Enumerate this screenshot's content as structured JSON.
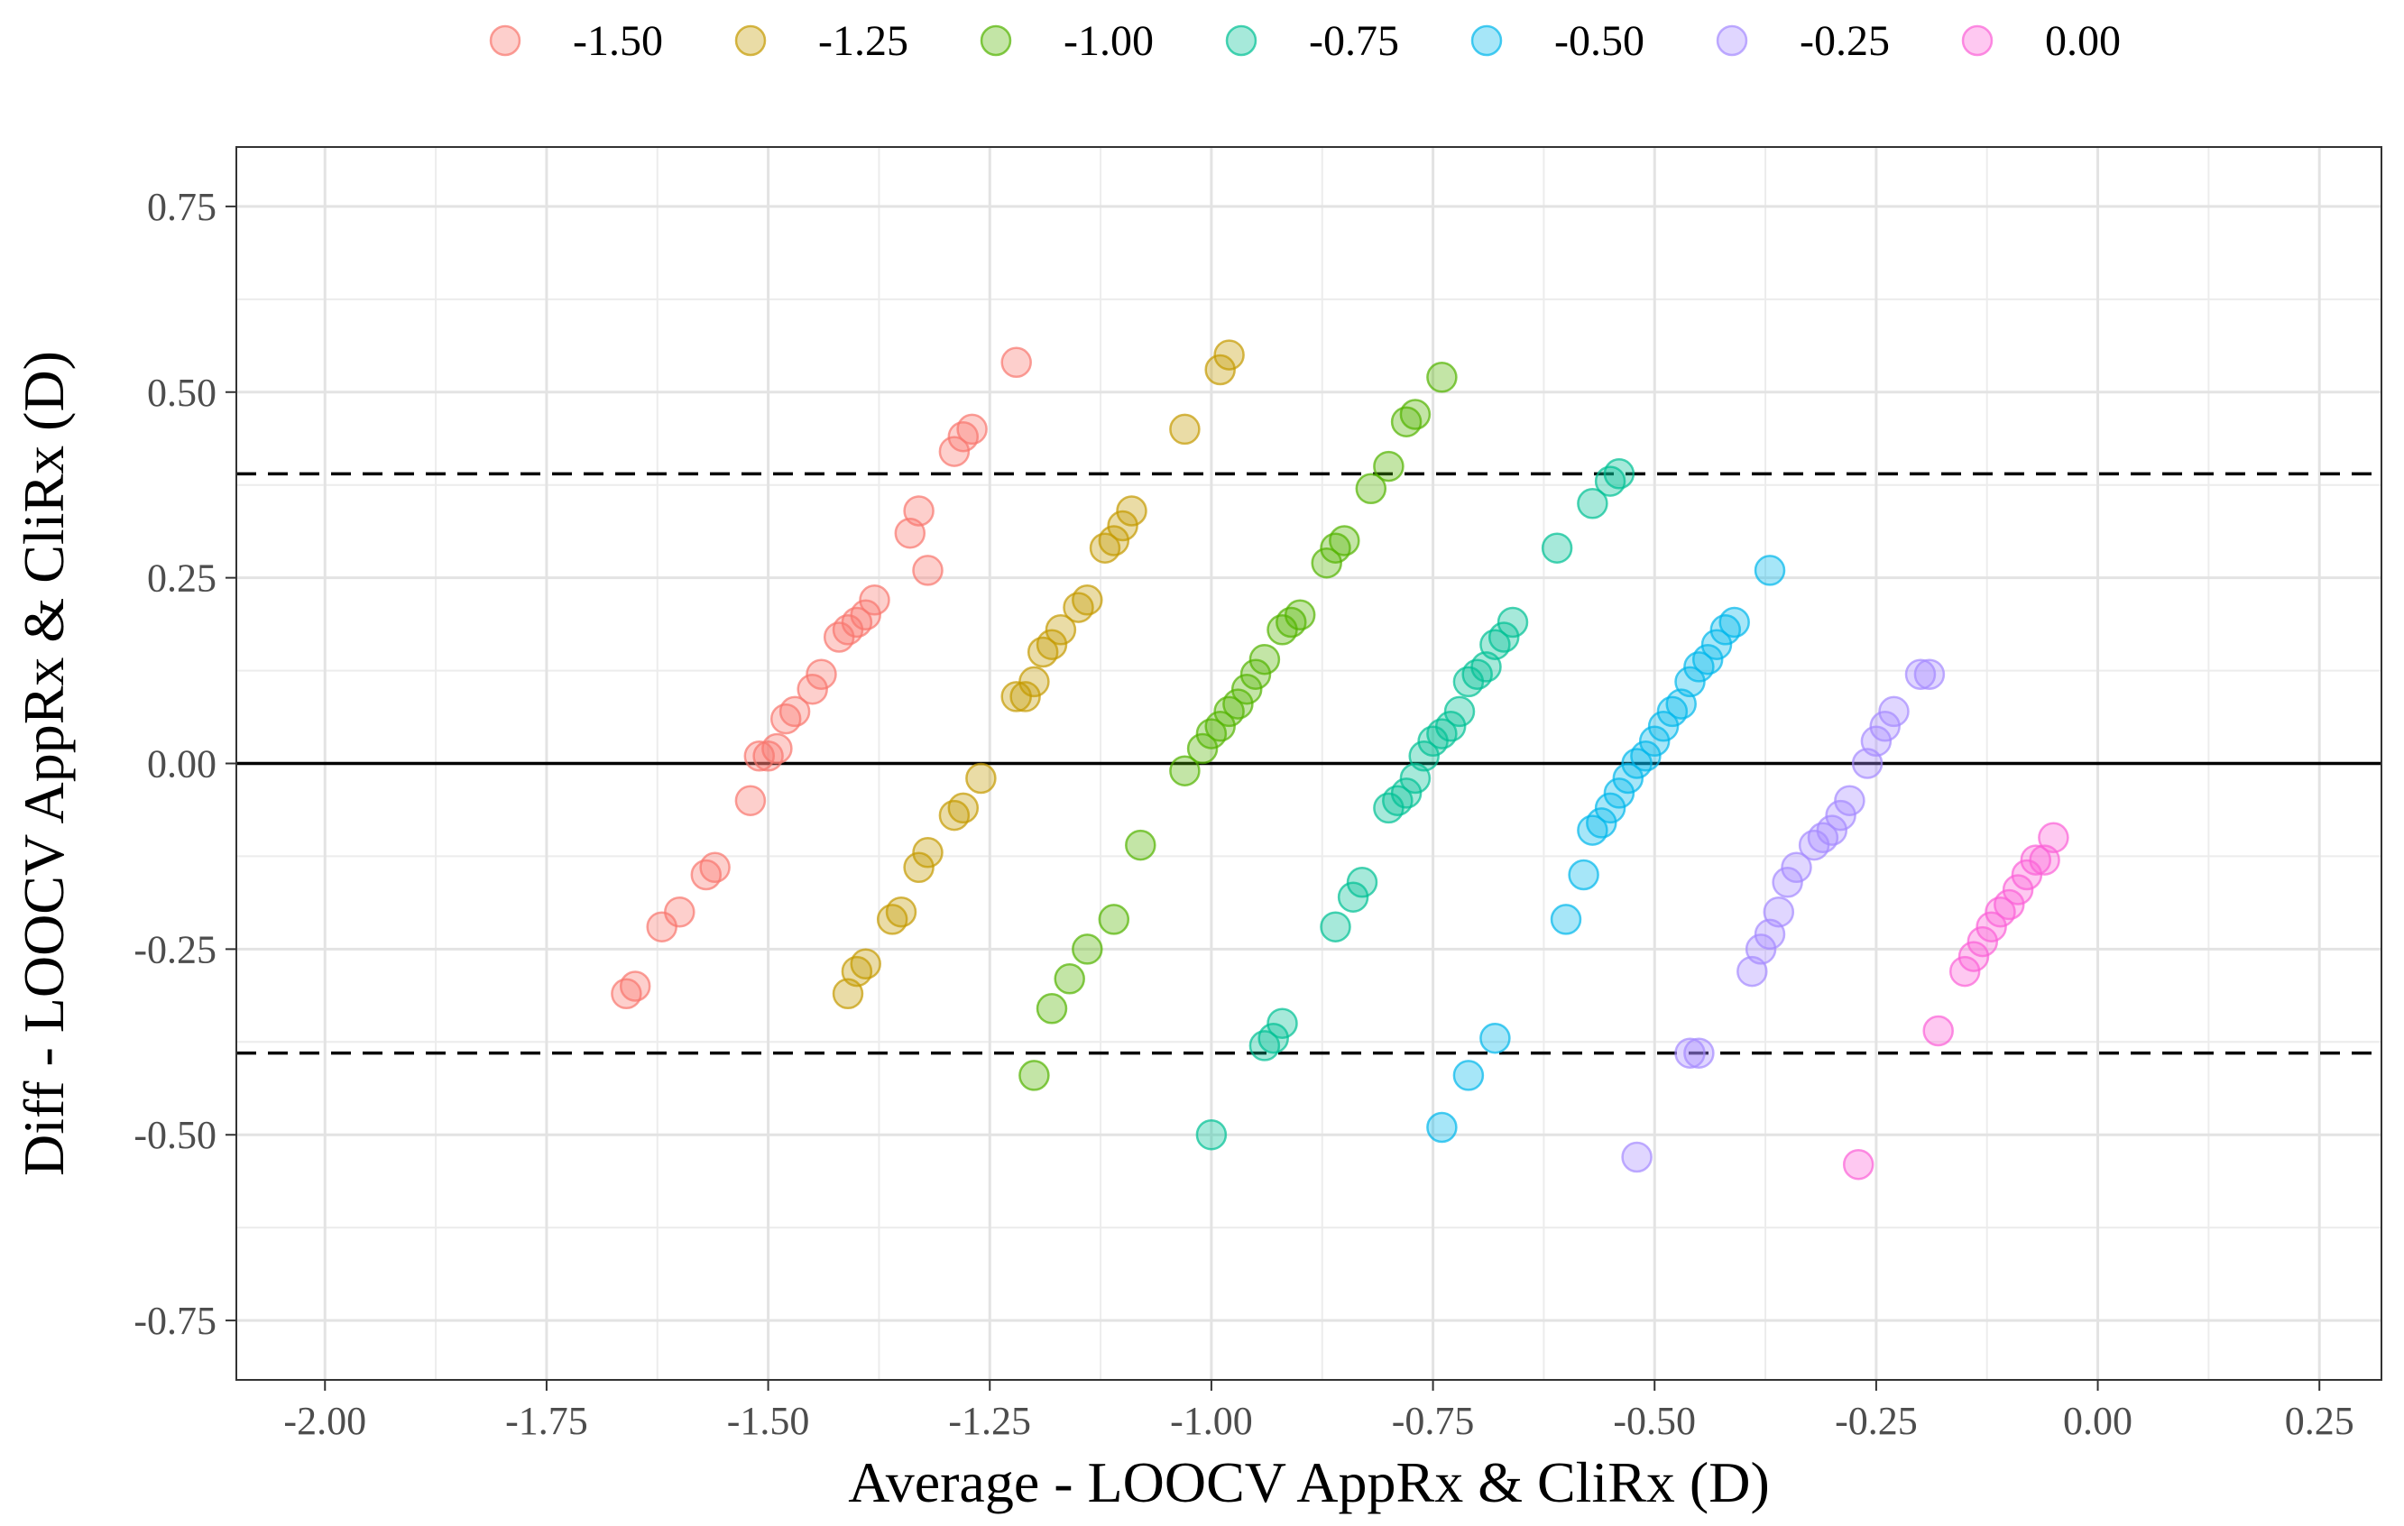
{
  "chart_data": {
    "type": "scatter",
    "xlabel": "Average - LOOCV AppRx & CliRx (D)",
    "ylabel": "Diff - LOOCV AppRx & CliRx (D)",
    "xlim": [
      -2.1,
      0.32
    ],
    "ylim": [
      -0.83,
      0.83
    ],
    "x_ticks": [
      -2.0,
      -1.75,
      -1.5,
      -1.25,
      -1.0,
      -0.75,
      -0.5,
      -0.25,
      0.0,
      0.25
    ],
    "x_tick_labels": [
      "-2.00",
      "-1.75",
      "-1.50",
      "-1.25",
      "-1.00",
      "-0.75",
      "-0.50",
      "-0.25",
      "0.00",
      "0.25"
    ],
    "y_ticks": [
      0.75,
      0.5,
      0.25,
      0.0,
      -0.25,
      -0.5,
      -0.75
    ],
    "y_tick_labels": [
      "0.75",
      "0.50",
      "0.25",
      "0.00",
      "-0.25",
      "-0.50",
      "-0.75"
    ],
    "grid": true,
    "legend_position": "top",
    "mean_line": 0.0,
    "limits_of_agreement": [
      0.39,
      -0.39
    ],
    "series": [
      {
        "name": "-1.50",
        "color": "#F8766D",
        "points": [
          [
            -1.22,
            0.54
          ],
          [
            -1.27,
            0.45
          ],
          [
            -1.28,
            0.44
          ],
          [
            -1.29,
            0.42
          ],
          [
            -1.33,
            0.34
          ],
          [
            -1.34,
            0.31
          ],
          [
            -1.32,
            0.26
          ],
          [
            -1.38,
            0.22
          ],
          [
            -1.39,
            0.2
          ],
          [
            -1.4,
            0.19
          ],
          [
            -1.41,
            0.18
          ],
          [
            -1.42,
            0.17
          ],
          [
            -1.44,
            0.12
          ],
          [
            -1.45,
            0.1
          ],
          [
            -1.47,
            0.07
          ],
          [
            -1.48,
            0.06
          ],
          [
            -1.49,
            0.02
          ],
          [
            -1.5,
            0.01
          ],
          [
            -1.51,
            0.01
          ],
          [
            -1.52,
            -0.05
          ],
          [
            -1.56,
            -0.14
          ],
          [
            -1.57,
            -0.15
          ],
          [
            -1.6,
            -0.2
          ],
          [
            -1.62,
            -0.22
          ],
          [
            -1.65,
            -0.3
          ],
          [
            -1.66,
            -0.31
          ]
        ]
      },
      {
        "name": "-1.25",
        "color": "#C49A00",
        "points": [
          [
            -0.98,
            0.55
          ],
          [
            -0.99,
            0.53
          ],
          [
            -1.03,
            0.45
          ],
          [
            -1.09,
            0.34
          ],
          [
            -1.1,
            0.32
          ],
          [
            -1.11,
            0.3
          ],
          [
            -1.12,
            0.29
          ],
          [
            -1.14,
            0.22
          ],
          [
            -1.15,
            0.21
          ],
          [
            -1.17,
            0.18
          ],
          [
            -1.18,
            0.16
          ],
          [
            -1.19,
            0.15
          ],
          [
            -1.2,
            0.11
          ],
          [
            -1.21,
            0.09
          ],
          [
            -1.22,
            0.09
          ],
          [
            -1.26,
            -0.02
          ],
          [
            -1.28,
            -0.06
          ],
          [
            -1.29,
            -0.07
          ],
          [
            -1.32,
            -0.12
          ],
          [
            -1.33,
            -0.14
          ],
          [
            -1.35,
            -0.2
          ],
          [
            -1.36,
            -0.21
          ],
          [
            -1.39,
            -0.27
          ],
          [
            -1.4,
            -0.28
          ],
          [
            -1.41,
            -0.31
          ]
        ]
      },
      {
        "name": "-1.00",
        "color": "#53B400",
        "points": [
          [
            -0.74,
            0.52
          ],
          [
            -0.77,
            0.47
          ],
          [
            -0.78,
            0.46
          ],
          [
            -0.8,
            0.4
          ],
          [
            -0.82,
            0.37
          ],
          [
            -0.85,
            0.3
          ],
          [
            -0.86,
            0.29
          ],
          [
            -0.87,
            0.27
          ],
          [
            -0.9,
            0.2
          ],
          [
            -0.91,
            0.19
          ],
          [
            -0.92,
            0.18
          ],
          [
            -0.94,
            0.14
          ],
          [
            -0.95,
            0.12
          ],
          [
            -0.96,
            0.1
          ],
          [
            -0.97,
            0.08
          ],
          [
            -0.98,
            0.07
          ],
          [
            -0.99,
            0.05
          ],
          [
            -1.0,
            0.04
          ],
          [
            -1.01,
            0.02
          ],
          [
            -1.03,
            -0.01
          ],
          [
            -1.08,
            -0.11
          ],
          [
            -1.11,
            -0.21
          ],
          [
            -1.14,
            -0.25
          ],
          [
            -1.16,
            -0.29
          ],
          [
            -1.18,
            -0.33
          ],
          [
            -1.2,
            -0.42
          ]
        ]
      },
      {
        "name": "-0.75",
        "color": "#00C094",
        "points": [
          [
            -0.54,
            0.39
          ],
          [
            -0.55,
            0.38
          ],
          [
            -0.57,
            0.35
          ],
          [
            -0.61,
            0.29
          ],
          [
            -0.66,
            0.19
          ],
          [
            -0.67,
            0.17
          ],
          [
            -0.68,
            0.16
          ],
          [
            -0.69,
            0.13
          ],
          [
            -0.7,
            0.12
          ],
          [
            -0.71,
            0.11
          ],
          [
            -0.72,
            0.07
          ],
          [
            -0.73,
            0.05
          ],
          [
            -0.74,
            0.04
          ],
          [
            -0.75,
            0.03
          ],
          [
            -0.76,
            0.01
          ],
          [
            -0.77,
            -0.02
          ],
          [
            -0.78,
            -0.04
          ],
          [
            -0.79,
            -0.05
          ],
          [
            -0.8,
            -0.06
          ],
          [
            -0.83,
            -0.16
          ],
          [
            -0.84,
            -0.18
          ],
          [
            -0.86,
            -0.22
          ],
          [
            -0.92,
            -0.35
          ],
          [
            -0.93,
            -0.37
          ],
          [
            -0.94,
            -0.38
          ],
          [
            -1.0,
            -0.5
          ]
        ]
      },
      {
        "name": "-0.50",
        "color": "#00B6EB",
        "points": [
          [
            -0.37,
            0.26
          ],
          [
            -0.41,
            0.19
          ],
          [
            -0.42,
            0.18
          ],
          [
            -0.43,
            0.16
          ],
          [
            -0.44,
            0.14
          ],
          [
            -0.45,
            0.13
          ],
          [
            -0.46,
            0.11
          ],
          [
            -0.47,
            0.08
          ],
          [
            -0.48,
            0.07
          ],
          [
            -0.49,
            0.05
          ],
          [
            -0.5,
            0.03
          ],
          [
            -0.51,
            0.01
          ],
          [
            -0.52,
            0.0
          ],
          [
            -0.53,
            -0.02
          ],
          [
            -0.54,
            -0.04
          ],
          [
            -0.55,
            -0.06
          ],
          [
            -0.56,
            -0.08
          ],
          [
            -0.57,
            -0.09
          ],
          [
            -0.58,
            -0.15
          ],
          [
            -0.6,
            -0.21
          ],
          [
            -0.68,
            -0.37
          ],
          [
            -0.71,
            -0.42
          ],
          [
            -0.74,
            -0.49
          ]
        ]
      },
      {
        "name": "-0.25",
        "color": "#A58AFF",
        "points": [
          [
            -0.19,
            0.12
          ],
          [
            -0.2,
            0.12
          ],
          [
            -0.23,
            0.07
          ],
          [
            -0.24,
            0.05
          ],
          [
            -0.25,
            0.03
          ],
          [
            -0.26,
            0.0
          ],
          [
            -0.28,
            -0.05
          ],
          [
            -0.29,
            -0.07
          ],
          [
            -0.3,
            -0.09
          ],
          [
            -0.31,
            -0.1
          ],
          [
            -0.32,
            -0.11
          ],
          [
            -0.34,
            -0.14
          ],
          [
            -0.35,
            -0.16
          ],
          [
            -0.36,
            -0.2
          ],
          [
            -0.37,
            -0.23
          ],
          [
            -0.38,
            -0.25
          ],
          [
            -0.39,
            -0.28
          ],
          [
            -0.45,
            -0.39
          ],
          [
            -0.46,
            -0.39
          ],
          [
            -0.52,
            -0.53
          ]
        ]
      },
      {
        "name": "0.00",
        "color": "#FB61D7",
        "points": [
          [
            -0.05,
            -0.1
          ],
          [
            -0.06,
            -0.13
          ],
          [
            -0.07,
            -0.13
          ],
          [
            -0.08,
            -0.15
          ],
          [
            -0.09,
            -0.17
          ],
          [
            -0.1,
            -0.19
          ],
          [
            -0.11,
            -0.2
          ],
          [
            -0.12,
            -0.22
          ],
          [
            -0.13,
            -0.24
          ],
          [
            -0.14,
            -0.26
          ],
          [
            -0.15,
            -0.28
          ],
          [
            -0.18,
            -0.36
          ],
          [
            -0.27,
            -0.54
          ]
        ]
      }
    ]
  }
}
